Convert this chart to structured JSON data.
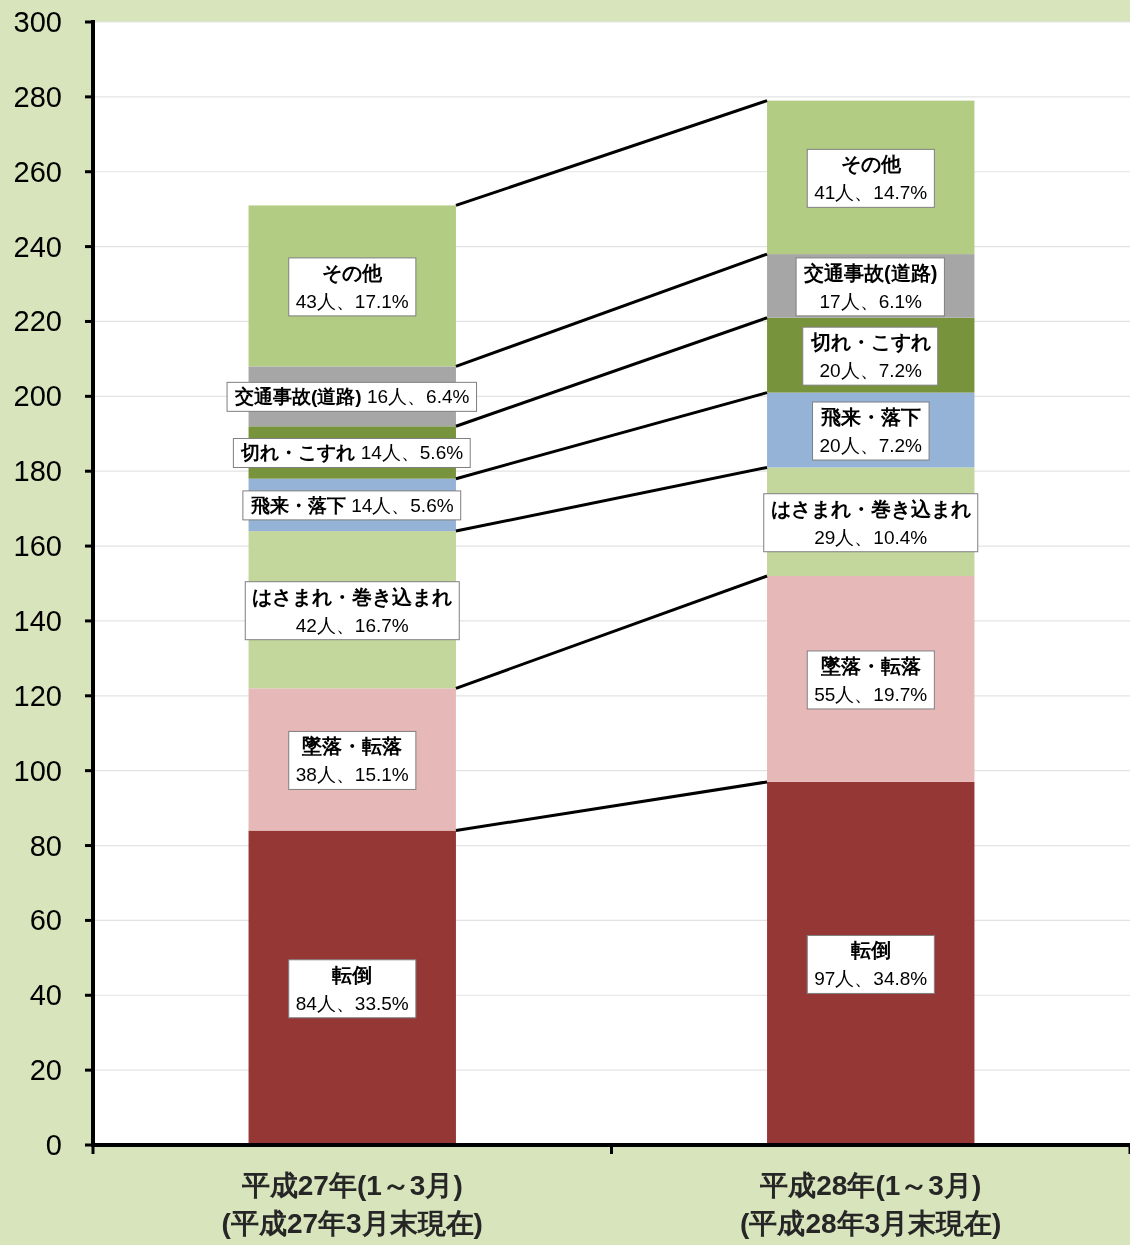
{
  "chart_data": {
    "type": "bar",
    "stacked": true,
    "categories": [
      "平成27年(1～3月)\n(平成27年3月末現在)",
      "平成28年(1～3月)\n(平成28年3月末現在)"
    ],
    "ylim": [
      0,
      300
    ],
    "yticks": [
      0,
      20,
      40,
      60,
      80,
      100,
      120,
      140,
      160,
      180,
      200,
      220,
      240,
      260,
      280,
      300
    ],
    "grid": "y",
    "series": [
      {
        "name": "転倒",
        "color": "#953735",
        "values": [
          84,
          97
        ],
        "value_labels": [
          "84人、33.5%",
          "97人、34.8%"
        ]
      },
      {
        "name": "墜落・転落",
        "color": "#e6b9b8",
        "values": [
          38,
          55
        ],
        "value_labels": [
          "38人、15.1%",
          "55人、19.7%"
        ]
      },
      {
        "name": "はさまれ・巻き込まれ",
        "color": "#c3d69b",
        "values": [
          42,
          29
        ],
        "value_labels": [
          "42人、16.7%",
          "29人、10.4%"
        ]
      },
      {
        "name": "飛来・落下",
        "color": "#95b3d7",
        "values": [
          14,
          20
        ],
        "value_labels": [
          "14人、5.6%",
          "20人、7.2%"
        ]
      },
      {
        "name": "切れ・こすれ",
        "color": "#77933c",
        "values": [
          14,
          20
        ],
        "value_labels": [
          "14人、5.6%",
          "20人、7.2%"
        ]
      },
      {
        "name": "交通事故(道路)",
        "color": "#a6a6a6",
        "values": [
          16,
          17
        ],
        "value_labels": [
          "16人、6.4%",
          "17人、6.1%"
        ]
      },
      {
        "name": "その他",
        "color": "#b3cc84",
        "values": [
          43,
          41
        ],
        "value_labels": [
          "43人、17.1%",
          "41人、14.7%"
        ]
      }
    ]
  }
}
